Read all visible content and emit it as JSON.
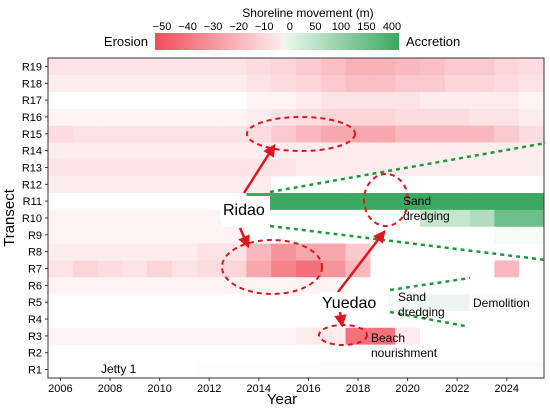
{
  "chart_data": {
    "type": "heatmap",
    "title": "Shoreline movement (m)",
    "xlabel": "Year",
    "ylabel": "Transect",
    "x_tick_labels": [
      "2006",
      "2008",
      "2010",
      "2012",
      "2014",
      "2016",
      "2018",
      "2020",
      "2022",
      "2024"
    ],
    "x_range": [
      2005.5,
      2025.5
    ],
    "categories": [
      "R1",
      "R2",
      "R3",
      "R4",
      "R5",
      "R6",
      "R7",
      "R8",
      "R9",
      "R10",
      "R11",
      "R12",
      "R13",
      "R14",
      "R15",
      "R16",
      "R17",
      "R18",
      "R19"
    ],
    "legend": {
      "left_label": "Erosion",
      "right_label": "Accretion",
      "ticks": [
        "−50",
        "−40",
        "−30",
        "−20",
        "−10",
        "0",
        "50",
        "100",
        "150",
        "400"
      ],
      "negative_color": "#f04e5a",
      "positive_color": "#3ca860"
    },
    "cells": [
      {
        "row": "R1",
        "values": [
          0,
          0,
          0,
          0,
          0,
          0,
          3,
          3,
          3,
          3,
          3,
          5,
          5,
          5,
          5,
          5,
          5,
          5,
          5,
          5
        ]
      },
      {
        "row": "R2",
        "values": [
          0,
          0,
          0,
          0,
          0,
          0,
          0,
          0,
          0,
          0,
          0,
          0,
          0,
          0,
          0,
          0,
          0,
          0,
          0,
          0
        ]
      },
      {
        "row": "R3",
        "values": [
          -3,
          -3,
          -3,
          -3,
          -3,
          -3,
          -3,
          -3,
          -3,
          -3,
          -6,
          -6,
          -40,
          -40,
          -6,
          0,
          0,
          0,
          0,
          0
        ]
      },
      {
        "row": "R4",
        "values": [
          0,
          0,
          0,
          0,
          0,
          0,
          0,
          0,
          0,
          0,
          0,
          0,
          0,
          0,
          0,
          0,
          0,
          0,
          0,
          0
        ]
      },
      {
        "row": "R5",
        "values": [
          0,
          0,
          0,
          0,
          0,
          0,
          0,
          0,
          0,
          0,
          0,
          0,
          10,
          10,
          10,
          20,
          20,
          5,
          5,
          0
        ]
      },
      {
        "row": "R6",
        "values": [
          -3,
          -3,
          -3,
          -3,
          -3,
          -3,
          -3,
          -3,
          -3,
          -3,
          -3,
          -3,
          0,
          0,
          0,
          0,
          0,
          0,
          0,
          0
        ]
      },
      {
        "row": "R7",
        "values": [
          -8,
          -12,
          -10,
          -8,
          -12,
          -8,
          -10,
          -12,
          -25,
          -35,
          -40,
          -30,
          -20,
          0,
          0,
          0,
          0,
          0,
          -20,
          0
        ]
      },
      {
        "row": "R8",
        "values": [
          -5,
          -5,
          -5,
          -5,
          -5,
          -5,
          -8,
          -8,
          -20,
          -30,
          -25,
          -25,
          -15,
          0,
          0,
          0,
          0,
          0,
          0,
          0
        ]
      },
      {
        "row": "R9",
        "values": [
          -3,
          -3,
          -3,
          -3,
          -3,
          -3,
          -3,
          -3,
          0,
          0,
          0,
          0,
          0,
          0,
          0,
          0,
          0,
          0,
          10,
          10
        ]
      },
      {
        "row": "R10",
        "values": [
          -3,
          -3,
          -3,
          -3,
          -3,
          -3,
          -3,
          0,
          0,
          0,
          0,
          0,
          0,
          0,
          0,
          60,
          60,
          80,
          150,
          150
        ]
      },
      {
        "row": "R11",
        "values": [
          0,
          0,
          0,
          0,
          0,
          0,
          0,
          0,
          400,
          400,
          400,
          400,
          400,
          400,
          400,
          400,
          400,
          400,
          400,
          400
        ]
      },
      {
        "row": "R12",
        "values": [
          -5,
          -5,
          -5,
          -5,
          -5,
          -5,
          -5,
          -5,
          -5,
          0,
          0,
          0,
          0,
          0,
          0,
          0,
          0,
          0,
          0,
          0
        ]
      },
      {
        "row": "R13",
        "values": [
          -8,
          -8,
          -8,
          -8,
          -8,
          -8,
          -8,
          -8,
          -8,
          -8,
          -5,
          -5,
          -5,
          -5,
          -5,
          -5,
          -5,
          -5,
          -5,
          -5
        ]
      },
      {
        "row": "R14",
        "values": [
          -5,
          -5,
          -5,
          -5,
          -5,
          -5,
          -5,
          -5,
          -5,
          -5,
          -5,
          -5,
          -5,
          -5,
          -5,
          -5,
          -5,
          -5,
          -5,
          -5
        ]
      },
      {
        "row": "R15",
        "values": [
          -10,
          -8,
          -8,
          -8,
          -8,
          -8,
          -8,
          -8,
          -10,
          -15,
          -20,
          -25,
          -25,
          -25,
          -20,
          -20,
          -20,
          -20,
          -15,
          -10
        ]
      },
      {
        "row": "R16",
        "values": [
          -3,
          -3,
          -3,
          -3,
          -3,
          -3,
          -3,
          -3,
          -5,
          -8,
          -10,
          -12,
          -12,
          -12,
          -10,
          -10,
          -10,
          -8,
          -8,
          -5
        ]
      },
      {
        "row": "R17",
        "values": [
          0,
          0,
          0,
          0,
          0,
          0,
          0,
          0,
          -3,
          -3,
          -5,
          -8,
          -8,
          -8,
          -8,
          -5,
          -5,
          -5,
          -5,
          -3
        ]
      },
      {
        "row": "R18",
        "values": [
          -5,
          -5,
          -5,
          -5,
          -5,
          -5,
          -5,
          -5,
          -8,
          -10,
          -12,
          -15,
          -18,
          -18,
          -15,
          -15,
          -12,
          -12,
          -10,
          -8
        ]
      },
      {
        "row": "R19",
        "values": [
          -8,
          -8,
          -8,
          -8,
          -8,
          -8,
          -8,
          -8,
          -10,
          -12,
          -15,
          -18,
          -22,
          -22,
          -20,
          -18,
          -15,
          -15,
          -12,
          -10
        ]
      }
    ],
    "annotations": {
      "ridao": "Ridao",
      "yuedao": "Yuedao",
      "sand_dredging_1": [
        "Sand",
        "dredging"
      ],
      "sand_dredging_2": [
        "Sand",
        "dredging"
      ],
      "demolition": "Demolition",
      "beach_nourishment": [
        "Beach",
        "nourishment"
      ],
      "jetty": "Jetty 1"
    },
    "annotation_colors": {
      "red_arrows": "#e0151e",
      "green_dashes": "#1d9a3a"
    }
  }
}
